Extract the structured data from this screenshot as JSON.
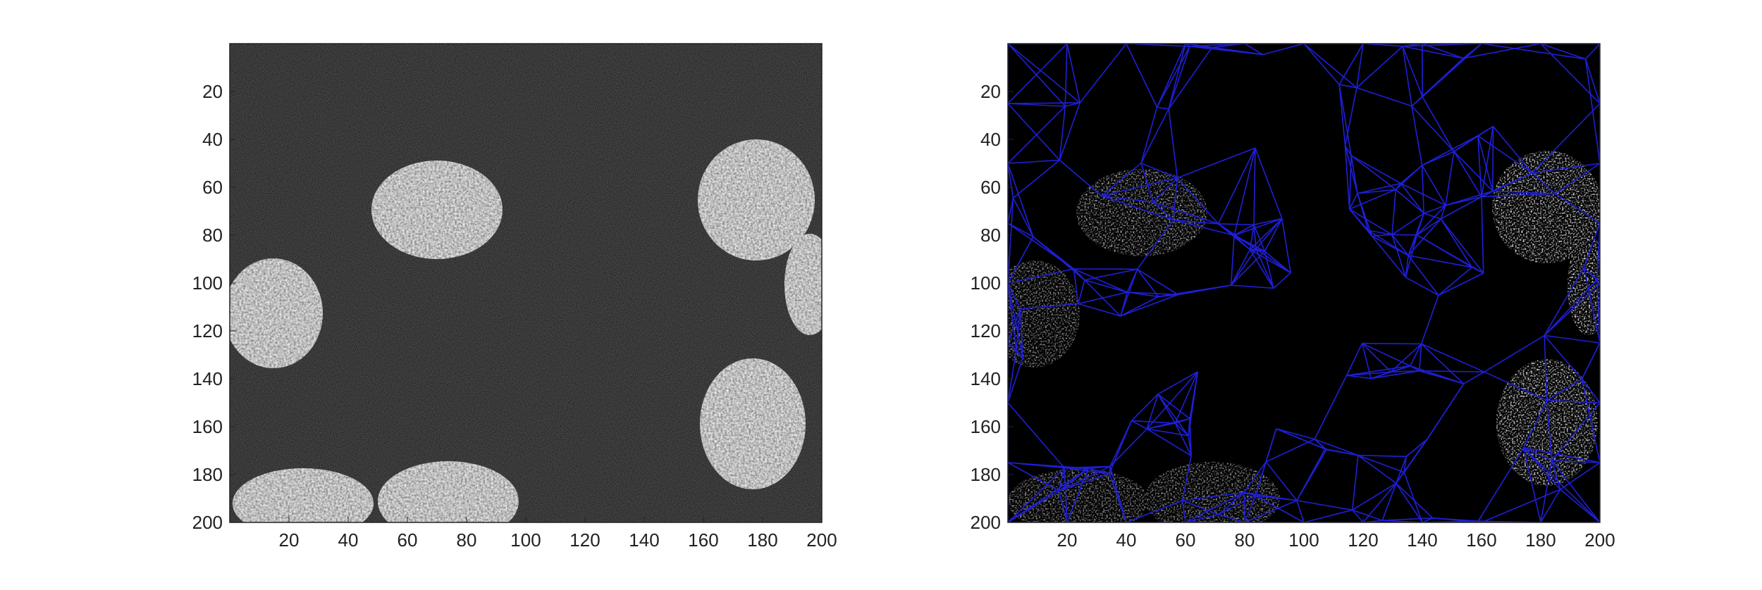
{
  "figure": {
    "panels": [
      {
        "id": "left",
        "kind": "grayscale-microscopy-image",
        "x_ticks": [
          "20",
          "40",
          "60",
          "80",
          "100",
          "120",
          "140",
          "160",
          "180",
          "200"
        ],
        "y_ticks": [
          "20",
          "40",
          "60",
          "80",
          "100",
          "120",
          "140",
          "160",
          "180",
          "200"
        ],
        "colors": {
          "background": "#0c0c0c",
          "nucleus": "#d9d9d9"
        }
      },
      {
        "id": "right",
        "kind": "segmentation-with-delaunay-mesh",
        "x_ticks": [
          "20",
          "40",
          "60",
          "80",
          "100",
          "120",
          "140",
          "160",
          "180",
          "200"
        ],
        "y_ticks": [
          "20",
          "40",
          "60",
          "80",
          "100",
          "120",
          "140",
          "160",
          "180",
          "200"
        ],
        "colors": {
          "background": "#000000",
          "mesh": "#1f1fd8",
          "region_gray": "#a9a9a9",
          "region_light": "#efefef"
        }
      }
    ]
  }
}
